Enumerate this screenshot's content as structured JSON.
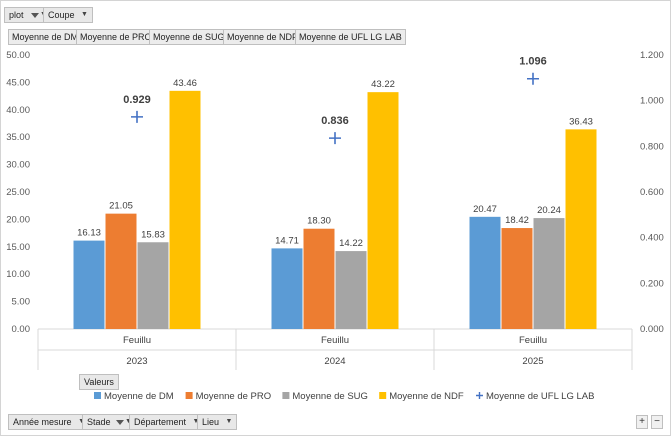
{
  "filters_top": [
    {
      "label": "plot",
      "filtered": true
    },
    {
      "label": "Coupe",
      "filtered": false
    }
  ],
  "field_tabs": [
    "Moyenne de DM",
    "Moyenne de PRO",
    "Moyenne de SUG",
    "Moyenne de NDF",
    "Moyenne de UFL LG LAB"
  ],
  "values_button": "Valeurs",
  "filters_bottom": [
    {
      "label": "Année mesure",
      "filtered": false
    },
    {
      "label": "Stade",
      "filtered": true
    },
    {
      "label": "Département",
      "filtered": false
    },
    {
      "label": "Lieu",
      "filtered": false
    }
  ],
  "zoom": {
    "plus": "+",
    "minus": "−"
  },
  "chart_data": {
    "type": "bar",
    "groups": [
      {
        "category": "Feuillu",
        "year": "2023"
      },
      {
        "category": "Feuillu",
        "year": "2024"
      },
      {
        "category": "Feuillu",
        "year": "2025"
      }
    ],
    "series": [
      {
        "name": "Moyenne de DM",
        "color": "#5b9bd5",
        "values": [
          16.13,
          14.71,
          20.47
        ],
        "labels": [
          "16.13",
          "14.71",
          "20.47"
        ]
      },
      {
        "name": "Moyenne de PRO",
        "color": "#ed7d31",
        "values": [
          21.05,
          18.3,
          18.42
        ],
        "labels": [
          "21.05",
          "18.30",
          "18.42"
        ]
      },
      {
        "name": "Moyenne de SUG",
        "color": "#a5a5a5",
        "values": [
          15.83,
          14.22,
          20.24
        ],
        "labels": [
          "15.83",
          "14.22",
          "20.24"
        ]
      },
      {
        "name": "Moyenne de NDF",
        "color": "#ffc000",
        "values": [
          43.46,
          43.22,
          36.43
        ],
        "labels": [
          "43.46",
          "43.22",
          "36.43"
        ]
      }
    ],
    "secondary_series": {
      "name": "Moyenne de UFL LG LAB",
      "type": "scatter",
      "marker": "plus",
      "color": "#4472c4",
      "values": [
        0.929,
        0.836,
        1.096
      ],
      "labels": [
        "0.929",
        "0.836",
        "1.096"
      ]
    },
    "y_left": {
      "min": 0,
      "max": 50,
      "ticks": [
        "0.00",
        "5.00",
        "10.00",
        "15.00",
        "20.00",
        "25.00",
        "30.00",
        "35.00",
        "40.00",
        "45.00",
        "50.00"
      ]
    },
    "y_right": {
      "min": 0,
      "max": 1.2,
      "ticks": [
        "0.000",
        "0.200",
        "0.400",
        "0.600",
        "0.800",
        "1.000",
        "1.200"
      ]
    },
    "grid": false,
    "legend_position": "bottom"
  }
}
